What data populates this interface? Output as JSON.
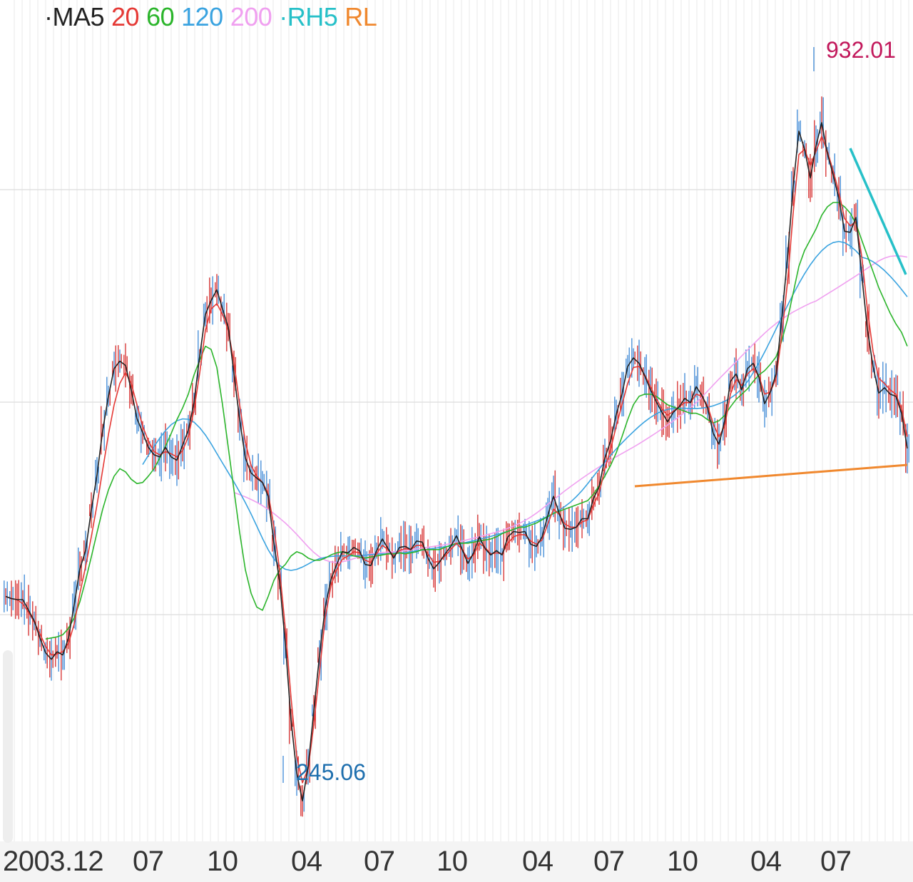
{
  "legend": [
    {
      "prefix": "·",
      "label": "MA5",
      "color": "#222222"
    },
    {
      "prefix": "",
      "label": "20",
      "color": "#e53935"
    },
    {
      "prefix": "",
      "label": "60",
      "color": "#2bb52b"
    },
    {
      "prefix": "",
      "label": "120",
      "color": "#3aa3e0"
    },
    {
      "prefix": "",
      "label": "200",
      "color": "#f0a0f0"
    },
    {
      "prefix": "·",
      "label": "RH5",
      "color": "#26c0c8"
    },
    {
      "prefix": "",
      "label": "RL",
      "color": "#f0882e"
    }
  ],
  "chart_data": {
    "type": "line",
    "xlabel": "",
    "ylabel": "",
    "x_ticks": [
      "2003.12",
      "07",
      "10",
      "04",
      "07",
      "10",
      "04",
      "07",
      "10",
      "04",
      "07"
    ],
    "ylim": [
      220,
      960
    ],
    "grid": true,
    "annotations": [
      {
        "text": "932.01",
        "kind": "high",
        "value": 932.01,
        "color": "#c2185b"
      },
      {
        "text": "245.06",
        "kind": "low",
        "value": 245.06,
        "color": "#1e6fae"
      }
    ],
    "series": [
      {
        "name": "MA5",
        "color": "#222222",
        "values": [
          440,
          438,
          437,
          437,
          427,
          417,
          401,
          387,
          381,
          388,
          385,
          401,
          432,
          466,
          483,
          521,
          554,
          596,
          628,
          654,
          661,
          657,
          634,
          607,
          594,
          580,
          573,
          571,
          580,
          571,
          568,
          582,
          596,
          622,
          666,
          705,
          718,
          728,
          710,
          693,
          649,
          606,
          570,
          556,
          551,
          547,
          534,
          490,
          454,
          396,
          324,
          274,
          248,
          280,
          333,
          385,
          430,
          456,
          470,
          482,
          481,
          486,
          483,
          470,
          469,
          483,
          494,
          485,
          476,
          486,
          487,
          484,
          492,
          491,
          476,
          466,
          472,
          480,
          487,
          497,
          484,
          471,
          481,
          496,
          485,
          479,
          483,
          479,
          496,
          501,
          500,
          501,
          489,
          487,
          496,
          516,
          534,
          518,
          504,
          503,
          505,
          513,
          513,
          532,
          543,
          570,
          586,
          611,
          630,
          656,
          664,
          659,
          647,
          634,
          623,
          613,
          604,
          613,
          618,
          626,
          622,
          637,
          629,
          617,
          593,
          583,
          605,
          642,
          649,
          634,
          654,
          659,
          646,
          621,
          632,
          649,
          701,
          758,
          825,
          877,
          860,
          833,
          863,
          885,
          856,
          836,
          814,
          783,
          782,
          796,
          743,
          691,
          656,
          631,
          636,
          630,
          628,
          612,
          579
        ]
      },
      {
        "name": "20",
        "color": "#e53935",
        "values": [
          440,
          438,
          437,
          433,
          425,
          416,
          405,
          393,
          385,
          386,
          388,
          396,
          414,
          443,
          468,
          496,
          526,
          559,
          592,
          620,
          640,
          650,
          640,
          620,
          600,
          586,
          576,
          573,
          576,
          574,
          571,
          577,
          590,
          615,
          650,
          690,
          710,
          715,
          705,
          690,
          660,
          620,
          585,
          563,
          553,
          547,
          537,
          505,
          465,
          410,
          345,
          290,
          265,
          278,
          320,
          370,
          420,
          450,
          465,
          475,
          478,
          482,
          481,
          474,
          472,
          480,
          488,
          484,
          478,
          483,
          485,
          484,
          488,
          488,
          480,
          472,
          473,
          478,
          484,
          490,
          484,
          475,
          479,
          490,
          486,
          480,
          481,
          480,
          490,
          496,
          498,
          498,
          492,
          489,
          493,
          508,
          522,
          517,
          508,
          505,
          505,
          510,
          512,
          526,
          537,
          560,
          578,
          600,
          620,
          640,
          655,
          656,
          648,
          637,
          626,
          616,
          610,
          614,
          618,
          622,
          622,
          630,
          628,
          619,
          602,
          590,
          600,
          630,
          644,
          638,
          649,
          654,
          647,
          630,
          632,
          645,
          685,
          735,
          800,
          855,
          860,
          845,
          858,
          872,
          858,
          840,
          820,
          795,
          788,
          792,
          760,
          710,
          670,
          645,
          640,
          634,
          630,
          616,
          590
        ]
      },
      {
        "name": "60",
        "color": "#2bb52b",
        "values": [
          null,
          null,
          null,
          null,
          null,
          null,
          null,
          400,
          401,
          402,
          404,
          410,
          420,
          435,
          455,
          477,
          500,
          522,
          540,
          553,
          560,
          557,
          550,
          546,
          547,
          553,
          560,
          570,
          581,
          593,
          606,
          617,
          630,
          648,
          662,
          675,
          672,
          655,
          620,
          580,
          540,
          500,
          465,
          443,
          430,
          427,
          440,
          455,
          465,
          470,
          478,
          482,
          480,
          476,
          474,
          474,
          476,
          479,
          481,
          482,
          480,
          478,
          477,
          476,
          477,
          478,
          479,
          480,
          480,
          481,
          480,
          481,
          482,
          484,
          484,
          484,
          484,
          486,
          488,
          490,
          490,
          490,
          491,
          492,
          493,
          494,
          496,
          499,
          501,
          503,
          505,
          505,
          507,
          509,
          512,
          515,
          518,
          520,
          522,
          524,
          526,
          528,
          530,
          536,
          544,
          553,
          563,
          575,
          590,
          606,
          620,
          628,
          630,
          630,
          628,
          624,
          620,
          618,
          616,
          614,
          612,
          612,
          610,
          606,
          603,
          605,
          610,
          618,
          625,
          630,
          635,
          642,
          648,
          652,
          658,
          665,
          680,
          700,
          725,
          750,
          765,
          775,
          785,
          798,
          806,
          810,
          810,
          806,
          800,
          790,
          775,
          760,
          745,
          730,
          718,
          706,
          696,
          688,
          675
        ]
      },
      {
        "name": "120",
        "color": "#3aa3e0",
        "values": [
          null,
          null,
          null,
          null,
          null,
          null,
          null,
          null,
          null,
          null,
          null,
          null,
          null,
          null,
          null,
          null,
          null,
          null,
          null,
          null,
          null,
          null,
          null,
          null,
          null,
          null,
          null,
          null,
          null,
          null,
          null,
          null,
          null,
          null,
          null,
          null,
          null,
          null,
          null,
          null,
          null,
          null,
          null,
          null,
          null,
          null,
          null,
          null,
          null,
          null,
          null,
          null,
          null,
          null,
          null,
          null,
          null,
          null,
          null,
          null,
          null,
          null,
          null,
          null,
          null,
          null,
          null,
          null,
          null,
          null,
          null,
          null,
          null,
          null,
          null,
          null,
          null,
          null,
          null,
          null,
          null,
          null,
          null,
          null,
          null,
          null,
          null,
          null,
          null,
          null,
          null,
          null,
          null,
          null,
          null,
          null,
          null,
          null,
          null,
          null,
          null,
          null,
          null,
          null,
          null,
          null,
          null,
          null,
          null,
          null,
          null,
          null,
          null,
          null,
          null,
          null,
          null,
          null,
          null,
          null,
          null,
          null,
          null,
          null,
          null,
          null,
          null,
          null,
          null,
          null,
          null,
          null,
          null,
          null,
          null,
          null,
          null,
          null,
          null,
          null,
          null,
          null,
          null,
          null,
          null,
          null,
          null,
          null,
          null,
          null,
          null,
          null,
          null,
          null,
          null,
          null,
          null,
          null,
          null
        ]
      },
      {
        "name": "200",
        "color": "#f0a0f0",
        "values": []
      },
      {
        "name": "RH5",
        "color": "#26c0c8",
        "values": [
          null,
          null,
          null,
          null,
          null,
          null,
          null,
          null,
          null,
          null,
          null,
          null,
          null,
          null,
          null,
          null,
          null,
          null,
          null,
          null,
          null,
          null,
          null,
          null,
          null,
          null,
          null,
          null,
          null,
          null,
          null,
          null,
          null,
          null,
          null,
          null,
          null,
          null,
          null,
          null,
          null,
          null,
          null,
          null,
          null,
          null,
          null,
          null,
          null,
          null,
          null,
          null,
          null,
          null,
          null,
          null,
          null,
          null,
          null,
          null,
          null,
          null,
          null,
          null,
          null,
          null,
          null,
          null,
          null,
          null,
          null,
          null,
          null,
          null,
          null,
          null,
          null,
          null,
          null,
          null,
          null,
          null,
          null,
          null,
          null,
          null,
          null,
          null,
          null,
          null,
          null,
          null,
          null,
          null,
          null,
          null,
          null,
          null,
          null,
          null,
          null,
          null,
          null,
          null,
          null,
          null,
          null,
          null,
          null,
          null,
          null,
          null,
          null,
          null,
          null,
          null,
          null,
          null,
          null,
          null,
          null,
          null,
          null,
          null,
          null,
          null,
          null,
          null,
          null,
          null,
          null,
          null,
          null,
          null,
          null,
          null,
          null,
          null,
          null,
          null,
          null,
          null,
          null,
          null,
          null,
          null,
          null,
          null,
          null,
          null,
          null,
          null,
          null,
          null,
          null,
          null,
          null,
          null,
          null
        ]
      },
      {
        "name": "RL",
        "color": "#f0882e",
        "values": []
      }
    ]
  }
}
